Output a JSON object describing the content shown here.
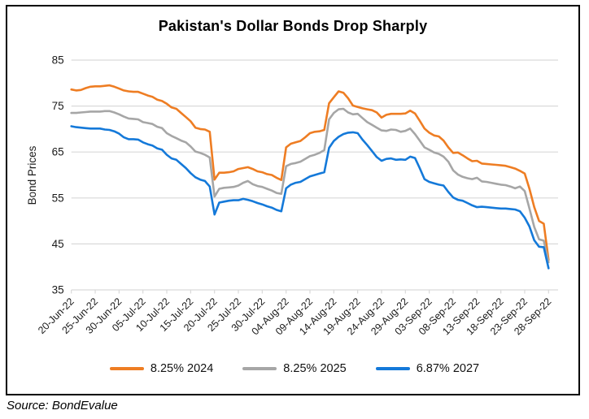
{
  "title": "Pakistan's Dollar Bonds Drop Sharply",
  "source": "Source: BondEvalue",
  "y_axis": {
    "label": "Bond Prices",
    "ticks": [
      85,
      75,
      65,
      55,
      45,
      35
    ]
  },
  "x_axis": {
    "tick_interval_days": 5,
    "first_label": "20-Jun-22",
    "last_label": "28-Sep-22"
  },
  "colors": {
    "grid": "#D9D9D9",
    "axis_text": "#1a1a1a",
    "border": "#000000"
  },
  "chart_data": {
    "type": "line",
    "title": "Pakistan's Dollar Bonds Drop Sharply",
    "xlabel": "",
    "ylabel": "Bond Prices",
    "ylim": [
      35,
      85
    ],
    "grid": true,
    "legend_position": "bottom",
    "x": [
      "20-Jun-22",
      "21-Jun-22",
      "22-Jun-22",
      "23-Jun-22",
      "24-Jun-22",
      "25-Jun-22",
      "26-Jun-22",
      "27-Jun-22",
      "28-Jun-22",
      "29-Jun-22",
      "30-Jun-22",
      "01-Jul-22",
      "02-Jul-22",
      "03-Jul-22",
      "04-Jul-22",
      "05-Jul-22",
      "06-Jul-22",
      "07-Jul-22",
      "08-Jul-22",
      "09-Jul-22",
      "10-Jul-22",
      "11-Jul-22",
      "12-Jul-22",
      "13-Jul-22",
      "14-Jul-22",
      "15-Jul-22",
      "16-Jul-22",
      "17-Jul-22",
      "18-Jul-22",
      "19-Jul-22",
      "20-Jul-22",
      "21-Jul-22",
      "22-Jul-22",
      "23-Jul-22",
      "24-Jul-22",
      "25-Jul-22",
      "26-Jul-22",
      "27-Jul-22",
      "28-Jul-22",
      "29-Jul-22",
      "30-Jul-22",
      "31-Jul-22",
      "01-Aug-22",
      "02-Aug-22",
      "03-Aug-22",
      "04-Aug-22",
      "05-Aug-22",
      "06-Aug-22",
      "07-Aug-22",
      "08-Aug-22",
      "09-Aug-22",
      "10-Aug-22",
      "11-Aug-22",
      "12-Aug-22",
      "13-Aug-22",
      "14-Aug-22",
      "15-Aug-22",
      "16-Aug-22",
      "17-Aug-22",
      "18-Aug-22",
      "19-Aug-22",
      "20-Aug-22",
      "21-Aug-22",
      "22-Aug-22",
      "23-Aug-22",
      "24-Aug-22",
      "25-Aug-22",
      "26-Aug-22",
      "27-Aug-22",
      "28-Aug-22",
      "29-Aug-22",
      "30-Aug-22",
      "31-Aug-22",
      "01-Sep-22",
      "02-Sep-22",
      "03-Sep-22",
      "04-Sep-22",
      "05-Sep-22",
      "06-Sep-22",
      "07-Sep-22",
      "08-Sep-22",
      "09-Sep-22",
      "10-Sep-22",
      "11-Sep-22",
      "12-Sep-22",
      "13-Sep-22",
      "14-Sep-22",
      "15-Sep-22",
      "16-Sep-22",
      "17-Sep-22",
      "18-Sep-22",
      "19-Sep-22",
      "20-Sep-22",
      "21-Sep-22",
      "22-Sep-22",
      "23-Sep-22",
      "24-Sep-22",
      "25-Sep-22",
      "26-Sep-22",
      "27-Sep-22",
      "28-Sep-22"
    ],
    "series": [
      {
        "name": "8.25% 2024",
        "color": "#EE7D23",
        "values": [
          78.6,
          78.4,
          78.5,
          78.9,
          79.2,
          79.3,
          79.3,
          79.4,
          79.5,
          79.2,
          78.8,
          78.4,
          78.2,
          78.1,
          78.1,
          77.7,
          77.3,
          77.0,
          76.4,
          76.1,
          75.5,
          74.7,
          74.4,
          73.5,
          72.6,
          71.7,
          70.3,
          70.0,
          69.9,
          69.4,
          59.0,
          60.5,
          60.5,
          60.6,
          60.8,
          61.3,
          61.5,
          61.7,
          61.3,
          60.8,
          60.6,
          60.2,
          60.0,
          59.4,
          58.9,
          66.0,
          66.8,
          67.1,
          67.4,
          68.2,
          69.1,
          69.4,
          69.5,
          69.8,
          75.6,
          76.9,
          78.2,
          77.9,
          76.7,
          75.1,
          74.8,
          74.5,
          74.3,
          74.1,
          73.6,
          72.5,
          73.1,
          73.3,
          73.3,
          73.3,
          73.4,
          74.0,
          73.4,
          71.8,
          70.1,
          69.2,
          68.6,
          68.4,
          67.5,
          66.0,
          64.8,
          64.9,
          64.3,
          63.6,
          63.0,
          63.1,
          62.5,
          62.4,
          62.3,
          62.2,
          62.1,
          62.0,
          61.7,
          61.4,
          60.9,
          60.3,
          57.0,
          53.0,
          50.0,
          49.4,
          41.5
        ]
      },
      {
        "name": "8.25% 2025",
        "color": "#A6A6A6",
        "values": [
          73.5,
          73.5,
          73.6,
          73.7,
          73.8,
          73.8,
          73.8,
          73.9,
          73.9,
          73.6,
          73.2,
          72.7,
          72.3,
          72.2,
          72.1,
          71.5,
          71.3,
          71.1,
          70.5,
          70.2,
          69.1,
          68.5,
          68.0,
          67.5,
          67.1,
          66.2,
          65.1,
          64.8,
          64.4,
          63.8,
          55.3,
          57.0,
          57.2,
          57.3,
          57.4,
          57.7,
          58.3,
          58.7,
          58.0,
          57.6,
          57.4,
          57.0,
          56.6,
          56.1,
          55.9,
          61.9,
          62.4,
          62.6,
          62.9,
          63.5,
          64.1,
          64.4,
          64.8,
          65.4,
          72.1,
          73.5,
          74.3,
          74.4,
          73.6,
          73.2,
          73.3,
          72.4,
          71.5,
          70.9,
          70.3,
          69.7,
          69.6,
          69.9,
          69.8,
          69.4,
          69.6,
          70.1,
          68.9,
          67.5,
          66.0,
          65.5,
          64.9,
          64.6,
          64.0,
          62.9,
          61.0,
          60.1,
          59.6,
          59.3,
          59.1,
          59.4,
          58.6,
          58.5,
          58.3,
          58.1,
          57.9,
          57.8,
          57.5,
          57.1,
          57.5,
          56.5,
          52.7,
          48.7,
          46.0,
          45.7,
          41.0
        ]
      },
      {
        "name": "6.87% 2027",
        "color": "#1479D9",
        "values": [
          70.6,
          70.4,
          70.3,
          70.2,
          70.1,
          70.1,
          70.1,
          69.9,
          69.8,
          69.5,
          69.0,
          68.2,
          67.8,
          67.8,
          67.7,
          67.1,
          66.7,
          66.4,
          65.8,
          65.5,
          64.4,
          63.6,
          63.3,
          62.4,
          61.5,
          60.4,
          59.5,
          59.0,
          58.7,
          57.5,
          51.4,
          54.0,
          54.2,
          54.4,
          54.5,
          54.5,
          54.8,
          54.6,
          54.3,
          53.9,
          53.6,
          53.2,
          52.9,
          52.4,
          52.1,
          57.1,
          57.9,
          58.3,
          58.5,
          59.1,
          59.7,
          60.0,
          60.3,
          60.6,
          65.9,
          67.4,
          68.3,
          68.9,
          69.2,
          69.3,
          69.1,
          67.7,
          66.5,
          65.2,
          63.9,
          63.1,
          63.5,
          63.6,
          63.3,
          63.4,
          63.3,
          64.0,
          63.7,
          61.5,
          59.1,
          58.5,
          58.2,
          57.9,
          57.7,
          56.3,
          55.1,
          54.6,
          54.4,
          53.9,
          53.4,
          53.0,
          53.1,
          53.0,
          52.9,
          52.8,
          52.7,
          52.7,
          52.6,
          52.5,
          52.1,
          50.7,
          48.8,
          45.8,
          44.4,
          44.3,
          39.7
        ]
      }
    ]
  }
}
